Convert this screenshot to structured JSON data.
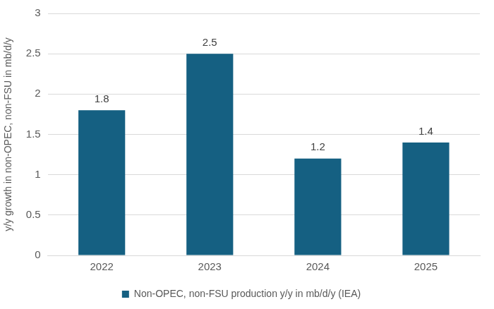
{
  "chart_data": {
    "type": "bar",
    "categories": [
      "2022",
      "2023",
      "2024",
      "2025"
    ],
    "series": [
      {
        "name": "Non-OPEC, non-FSU production y/y in mb/d/y (IEA)",
        "color": "#156082",
        "values": [
          1.8,
          2.5,
          1.2,
          1.4
        ]
      }
    ],
    "ylabel": "y/y growth in non-OPEC, non-FSU in mb/d/y",
    "ylim": [
      0,
      3
    ],
    "yticks": [
      0,
      0.5,
      1,
      1.5,
      2,
      2.5,
      3
    ],
    "grid": true,
    "legend": "bottom",
    "data_labels": true
  }
}
